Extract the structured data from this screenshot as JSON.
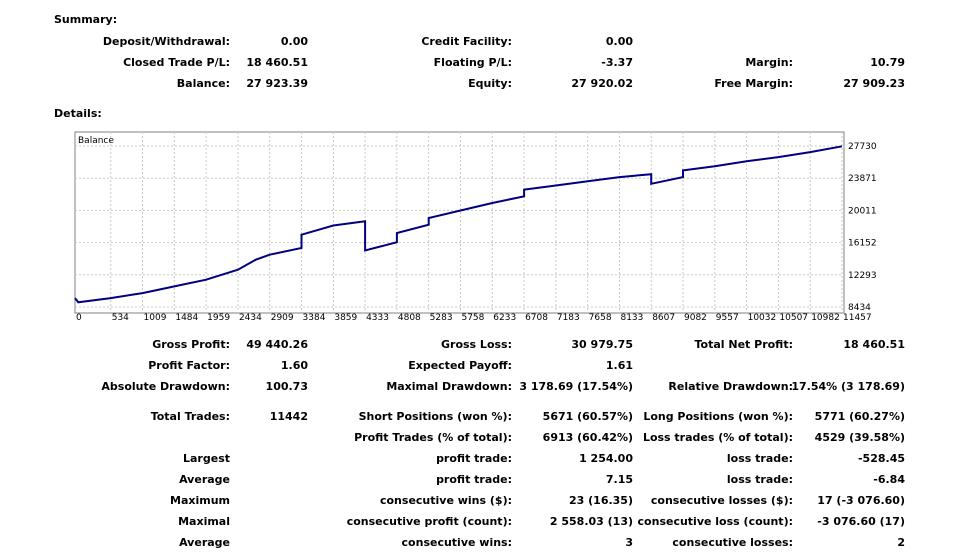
{
  "summary": {
    "title": "Summary:",
    "rows": [
      [
        {
          "label": "Deposit/Withdrawal:",
          "value": "0.00"
        },
        {
          "label": "Credit Facility:",
          "value": "0.00"
        },
        {
          "label": "",
          "value": ""
        }
      ],
      [
        {
          "label": "Closed Trade P/L:",
          "value": "18 460.51"
        },
        {
          "label": "Floating P/L:",
          "value": "-3.37"
        },
        {
          "label": "Margin:",
          "value": "10.79"
        }
      ],
      [
        {
          "label": "Balance:",
          "value": "27 923.39"
        },
        {
          "label": "Equity:",
          "value": "27 920.02"
        },
        {
          "label": "Free Margin:",
          "value": "27 909.23"
        }
      ]
    ]
  },
  "details": {
    "title": "Details:",
    "rows": [
      [
        {
          "label": "Gross Profit:",
          "value": "49 440.26"
        },
        {
          "label": "Gross Loss:",
          "value": "30 979.75"
        },
        {
          "label": "Total Net Profit:",
          "value": "18 460.51"
        }
      ],
      [
        {
          "label": "Profit Factor:",
          "value": "1.60"
        },
        {
          "label": "Expected Payoff:",
          "value": "1.61"
        },
        {
          "label": "",
          "value": ""
        }
      ],
      [
        {
          "label": "Absolute Drawdown:",
          "value": "100.73"
        },
        {
          "label": "Maximal Drawdown:",
          "value": "3 178.69 (17.54%)"
        },
        {
          "label": "Relative Drawdown:",
          "value": "17.54% (3 178.69)"
        }
      ],
      [
        {
          "label": "Total Trades:",
          "value": "11442"
        },
        {
          "label": "Short Positions (won %):",
          "value": "5671 (60.57%)"
        },
        {
          "label": "Long Positions (won %):",
          "value": "5771 (60.27%)"
        }
      ],
      [
        {
          "label": "",
          "value": ""
        },
        {
          "label": "Profit Trades (% of total):",
          "value": "6913 (60.42%)"
        },
        {
          "label": "Loss trades (% of total):",
          "value": "4529 (39.58%)"
        }
      ],
      [
        {
          "label": "Largest",
          "value": ""
        },
        {
          "label": "profit trade:",
          "value": "1 254.00"
        },
        {
          "label": "loss trade:",
          "value": "-528.45"
        }
      ],
      [
        {
          "label": "Average",
          "value": ""
        },
        {
          "label": "profit trade:",
          "value": "7.15"
        },
        {
          "label": "loss trade:",
          "value": "-6.84"
        }
      ],
      [
        {
          "label": "Maximum",
          "value": ""
        },
        {
          "label": "consecutive wins ($):",
          "value": "23 (16.35)"
        },
        {
          "label": "consecutive losses ($):",
          "value": "17 (-3 076.60)"
        }
      ],
      [
        {
          "label": "Maximal",
          "value": ""
        },
        {
          "label": "consecutive profit (count):",
          "value": "2 558.03 (13)"
        },
        {
          "label": "consecutive loss (count):",
          "value": "-3 076.60 (17)"
        }
      ],
      [
        {
          "label": "Average",
          "value": ""
        },
        {
          "label": "consecutive wins:",
          "value": "3"
        },
        {
          "label": "consecutive losses:",
          "value": "2"
        }
      ]
    ]
  },
  "chart_data": {
    "type": "line",
    "title": "Balance",
    "line_color": "#000080",
    "grid": true,
    "x_ticks": [
      "0",
      "534",
      "1009",
      "1484",
      "1959",
      "2434",
      "2909",
      "3384",
      "3859",
      "4333",
      "4808",
      "5283",
      "5758",
      "6233",
      "6708",
      "7183",
      "7658",
      "8133",
      "8607",
      "9082",
      "9557",
      "10032",
      "10507",
      "10982",
      "11457"
    ],
    "y_ticks": [
      "27730",
      "23871",
      "20011",
      "16152",
      "12293",
      "8434"
    ],
    "xlim": [
      0,
      11457
    ],
    "ylim": [
      8434,
      27730
    ],
    "series": [
      {
        "name": "Balance",
        "x": [
          0,
          50,
          534,
          1009,
          1484,
          1959,
          2434,
          2700,
          2909,
          3384,
          3384,
          3859,
          4333,
          4333,
          4808,
          4808,
          5283,
          5283,
          5758,
          6233,
          6708,
          6708,
          7183,
          7658,
          8133,
          8607,
          8607,
          9082,
          9082,
          9557,
          10032,
          10507,
          10982,
          11457
        ],
        "y": [
          9500,
          9000,
          9500,
          10100,
          10900,
          11700,
          12900,
          14100,
          14700,
          15500,
          17100,
          18200,
          18700,
          15200,
          16200,
          17300,
          18300,
          19100,
          20000,
          20900,
          21700,
          22500,
          23000,
          23500,
          24000,
          24350,
          23200,
          24000,
          24800,
          25300,
          25900,
          26400,
          27000,
          27700
        ]
      }
    ]
  }
}
